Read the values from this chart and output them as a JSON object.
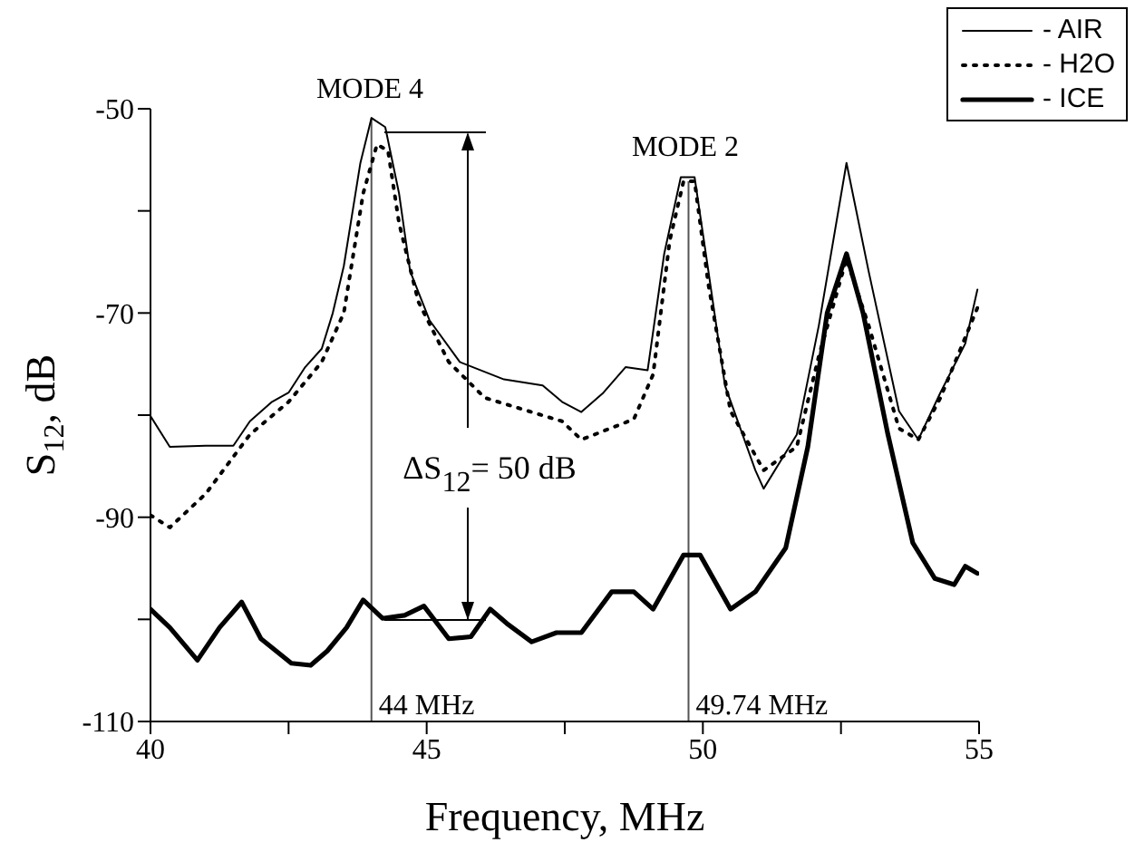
{
  "chart_data": {
    "type": "line",
    "xlabel": "Frequency, MHz",
    "ylabel": "S$_{12}$, dB",
    "xlim": [
      40,
      55
    ],
    "xticks": [
      40,
      {
        "value": 42.5,
        "label": null
      },
      45,
      {
        "value": 47.5,
        "label": null
      },
      50,
      {
        "value": 52.5,
        "label": null
      },
      55
    ],
    "ylim": [
      -110,
      -50
    ],
    "yticks": [
      -110,
      {
        "value": -100,
        "label": null
      },
      -90,
      {
        "value": -80,
        "label": null
      },
      -70,
      {
        "value": -60,
        "label": null
      },
      -50
    ],
    "legend": "top right",
    "marker": "none",
    "series": [
      {
        "name": "- AIR",
        "color": "#000000",
        "line_style": "solid",
        "x": [
          40,
          40.35,
          41.0,
          41.5,
          41.8,
          42.2,
          42.5,
          42.8,
          43.1,
          43.3,
          43.5,
          43.8,
          44.0,
          44.25,
          44.5,
          44.7,
          45.05,
          45.6,
          46.4,
          47.1,
          47.45,
          47.8,
          48.2,
          48.6,
          49.0,
          49.3,
          49.6,
          49.85,
          50.1,
          50.4,
          50.95,
          51.1,
          51.7,
          52.1,
          52.6,
          53.0,
          53.55,
          53.9,
          54.3,
          54.75,
          54.97
        ],
        "values": [
          -80.1,
          -83.1,
          -83,
          -83,
          -80.6,
          -78.7,
          -77.8,
          -75.3,
          -73.5,
          -70,
          -65.4,
          -55.3,
          -50.9,
          -51.8,
          -58.3,
          -65.9,
          -70.7,
          -74.8,
          -76.5,
          -77.1,
          -78.7,
          -79.7,
          -77.8,
          -75.3,
          -75.6,
          -64.2,
          -56.7,
          -56.7,
          -65.9,
          -77.1,
          -85.4,
          -87.2,
          -81.9,
          -71.2,
          -55.3,
          -65.9,
          -79.6,
          -82.4,
          -77.8,
          -73,
          -67.7
        ]
      },
      {
        "name": "- H2O",
        "color": "#000000",
        "line_style": "dotted",
        "x": [
          40,
          40.35,
          41.0,
          41.8,
          42.5,
          43.1,
          43.5,
          43.85,
          44.1,
          44.3,
          44.5,
          44.85,
          45.4,
          46.05,
          46.9,
          47.45,
          47.8,
          48.75,
          49.1,
          49.4,
          49.65,
          49.85,
          50.1,
          50.5,
          51.1,
          51.7,
          52.1,
          52.6,
          53.0,
          53.55,
          53.9,
          54.3,
          54.97
        ],
        "values": [
          -89.8,
          -91,
          -87.7,
          -81.9,
          -78.7,
          -74.8,
          -70,
          -58.3,
          -53.5,
          -54.1,
          -61.2,
          -68.9,
          -74.8,
          -78.3,
          -79.7,
          -80.6,
          -82.4,
          -80.4,
          -76,
          -62.9,
          -57.1,
          -57.1,
          -67.2,
          -79.6,
          -85.4,
          -83.1,
          -74.2,
          -64.7,
          -71.2,
          -81.3,
          -82.4,
          -78.3,
          -69.5
        ]
      },
      {
        "name": "- ICE",
        "color": "#000000",
        "line_style": "solid",
        "x": [
          40,
          40.35,
          40.85,
          41.25,
          41.65,
          42.0,
          42.55,
          42.9,
          43.2,
          43.55,
          43.85,
          44.2,
          44.6,
          44.95,
          45.4,
          45.8,
          46.15,
          46.45,
          46.9,
          47.35,
          47.8,
          48.35,
          48.75,
          49.1,
          49.65,
          49.95,
          50.5,
          50.95,
          51.5,
          51.9,
          52.25,
          52.6,
          52.9,
          53.35,
          53.8,
          54.2,
          54.55,
          54.75,
          54.97
        ],
        "values": [
          -99,
          -100.8,
          -104,
          -100.8,
          -98.3,
          -101.9,
          -104.3,
          -104.5,
          -103.1,
          -100.8,
          -98.1,
          -99.9,
          -99.6,
          -98.7,
          -101.9,
          -101.7,
          -99,
          -100.4,
          -102.2,
          -101.3,
          -101.3,
          -97.3,
          -97.3,
          -99,
          -93.7,
          -93.7,
          -99,
          -97.3,
          -93,
          -83.1,
          -70,
          -64.2,
          -70,
          -81.9,
          -92.5,
          -96,
          -96.6,
          -94.8,
          -95.5
        ]
      }
    ],
    "ref_lines": [
      {
        "axis": "x",
        "value": 44,
        "label": "44 MHz"
      },
      {
        "axis": "x",
        "value": 49.74,
        "label": "49.74 MHz"
      }
    ],
    "annotations": [
      "MODE 4",
      "MODE 2",
      "ΔS$_{12}$= 50 dB"
    ]
  }
}
